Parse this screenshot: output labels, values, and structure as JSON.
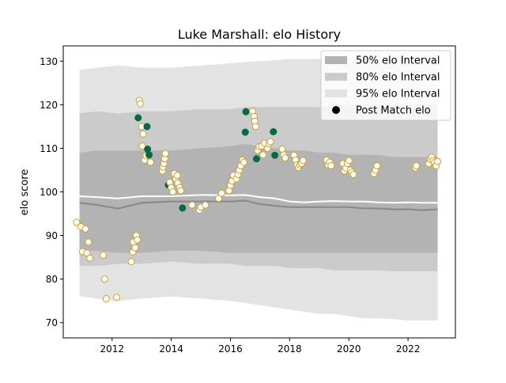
{
  "chart_data": {
    "type": "scatter",
    "title": "Luke Marshall: elo History",
    "xlabel": "",
    "ylabel": "elo score",
    "xlim": [
      2010.35,
      2023.6
    ],
    "ylim": [
      66.5,
      133.5
    ],
    "x_ticks": [
      {
        "value": 2012,
        "label": "2012"
      },
      {
        "value": 2014,
        "label": "2014"
      },
      {
        "value": 2016,
        "label": "2016"
      },
      {
        "value": 2018,
        "label": "2018"
      },
      {
        "value": 2020,
        "label": "2020"
      },
      {
        "value": 2022,
        "label": "2022"
      }
    ],
    "y_ticks": [
      {
        "value": 70,
        "label": "70"
      },
      {
        "value": 80,
        "label": "80"
      },
      {
        "value": 90,
        "label": "90"
      },
      {
        "value": 100,
        "label": "100"
      },
      {
        "value": 110,
        "label": "110"
      },
      {
        "value": 120,
        "label": "120"
      },
      {
        "value": 130,
        "label": "130"
      }
    ],
    "grid": false,
    "legend_position": "top-right",
    "legend": [
      {
        "label": "50% elo Interval",
        "kind": "patch",
        "color": "#b3b3b3"
      },
      {
        "label": "80% elo Interval",
        "kind": "patch",
        "color": "#cbcbcb"
      },
      {
        "label": "95% elo Interval",
        "kind": "patch",
        "color": "#e3e3e3"
      },
      {
        "label": "Post Match elo",
        "kind": "marker",
        "color": "#000000"
      }
    ],
    "colors": {
      "band95": "#e3e3e3",
      "band80": "#cbcbcb",
      "band50": "#b3b3b3",
      "median_line": "#888888",
      "mean_line": "#ffffff",
      "win_marker": "#006b45",
      "loss_marker_fill": "#ffffff",
      "loss_marker_edge": "#d4a021"
    },
    "bands": {
      "x": [
        2010.9,
        2011.5,
        2012.2,
        2013.0,
        2014.0,
        2015.0,
        2016.0,
        2016.5,
        2017.0,
        2017.5,
        2018.0,
        2018.5,
        2019.0,
        2019.5,
        2020.0,
        2020.5,
        2021.0,
        2021.5,
        2022.0,
        2022.5,
        2023.0
      ],
      "p95_lo": [
        76.0,
        75.5,
        75.0,
        75.5,
        76.0,
        75.5,
        75.0,
        74.5,
        74.0,
        73.5,
        73.0,
        72.5,
        72.0,
        72.0,
        71.5,
        71.0,
        71.0,
        70.8,
        70.5,
        70.5,
        70.5
      ],
      "p95_hi": [
        128.0,
        128.5,
        129.0,
        128.5,
        128.5,
        129.0,
        129.5,
        129.8,
        130.0,
        130.2,
        130.5,
        130.5,
        130.5,
        130.8,
        131.0,
        131.0,
        131.0,
        131.2,
        131.3,
        131.4,
        131.5
      ],
      "p80_lo": [
        83.0,
        83.0,
        83.5,
        83.5,
        84.0,
        83.5,
        83.5,
        83.0,
        83.0,
        83.0,
        82.5,
        82.5,
        82.5,
        82.0,
        82.0,
        82.0,
        82.0,
        81.8,
        81.8,
        81.8,
        81.8
      ],
      "p80_hi": [
        118.0,
        118.5,
        118.0,
        118.5,
        118.5,
        119.0,
        119.0,
        119.5,
        119.5,
        119.5,
        119.5,
        119.5,
        119.5,
        119.8,
        120.0,
        120.0,
        120.0,
        120.0,
        120.0,
        120.0,
        120.0
      ],
      "p50_lo": [
        86.5,
        86.5,
        86.0,
        86.0,
        86.5,
        86.5,
        86.0,
        86.0,
        86.0,
        86.0,
        86.0,
        86.0,
        86.0,
        86.0,
        86.0,
        86.0,
        86.0,
        86.0,
        86.0,
        86.0,
        86.0
      ],
      "p50_hi": [
        109.0,
        109.5,
        109.5,
        109.5,
        109.5,
        110.0,
        110.5,
        111.0,
        110.5,
        110.0,
        109.5,
        109.5,
        109.0,
        109.0,
        108.5,
        108.5,
        108.5,
        108.0,
        108.0,
        108.0,
        108.0
      ],
      "median": [
        97.5,
        97.0,
        96.2,
        97.5,
        97.8,
        97.8,
        97.8,
        98.0,
        97.2,
        96.8,
        96.5,
        96.5,
        96.5,
        96.5,
        96.5,
        96.2,
        96.2,
        96.0,
        96.0,
        95.8,
        96.0
      ],
      "mean": [
        99.0,
        98.8,
        98.5,
        99.0,
        99.0,
        99.3,
        99.2,
        99.3,
        98.8,
        98.5,
        97.8,
        97.6,
        97.8,
        97.9,
        97.8,
        97.8,
        97.6,
        97.5,
        97.6,
        97.5,
        97.5
      ]
    },
    "series": [
      {
        "name": "Post Match elo",
        "points": [
          {
            "x": 2010.8,
            "y": 93.0,
            "result": "loss"
          },
          {
            "x": 2010.95,
            "y": 92.0,
            "result": "loss"
          },
          {
            "x": 2011.0,
            "y": 86.3,
            "result": "loss"
          },
          {
            "x": 2011.1,
            "y": 91.5,
            "result": "loss"
          },
          {
            "x": 2011.15,
            "y": 86.0,
            "result": "loss"
          },
          {
            "x": 2011.2,
            "y": 88.5,
            "result": "loss"
          },
          {
            "x": 2011.25,
            "y": 84.8,
            "result": "loss"
          },
          {
            "x": 2011.7,
            "y": 85.5,
            "result": "loss"
          },
          {
            "x": 2011.75,
            "y": 80.0,
            "result": "loss"
          },
          {
            "x": 2011.8,
            "y": 75.5,
            "result": "loss"
          },
          {
            "x": 2012.15,
            "y": 75.8,
            "result": "loss"
          },
          {
            "x": 2012.65,
            "y": 84.0,
            "result": "loss"
          },
          {
            "x": 2012.7,
            "y": 86.2,
            "result": "loss"
          },
          {
            "x": 2012.72,
            "y": 88.5,
            "result": "loss"
          },
          {
            "x": 2012.78,
            "y": 87.2,
            "result": "loss"
          },
          {
            "x": 2012.82,
            "y": 90.0,
            "result": "loss"
          },
          {
            "x": 2012.85,
            "y": 89.0,
            "result": "loss"
          },
          {
            "x": 2012.88,
            "y": 117.0,
            "result": "win"
          },
          {
            "x": 2012.92,
            "y": 121.0,
            "result": "loss"
          },
          {
            "x": 2012.95,
            "y": 120.2,
            "result": "loss"
          },
          {
            "x": 2013.0,
            "y": 115.0,
            "result": "loss"
          },
          {
            "x": 2013.02,
            "y": 110.5,
            "result": "loss"
          },
          {
            "x": 2013.05,
            "y": 113.3,
            "result": "loss"
          },
          {
            "x": 2013.1,
            "y": 107.3,
            "result": "loss"
          },
          {
            "x": 2013.15,
            "y": 108.3,
            "result": "loss"
          },
          {
            "x": 2013.18,
            "y": 115.0,
            "result": "win"
          },
          {
            "x": 2013.2,
            "y": 109.8,
            "result": "win"
          },
          {
            "x": 2013.25,
            "y": 108.5,
            "result": "win"
          },
          {
            "x": 2013.3,
            "y": 106.8,
            "result": "loss"
          },
          {
            "x": 2013.7,
            "y": 104.8,
            "result": "loss"
          },
          {
            "x": 2013.72,
            "y": 105.7,
            "result": "loss"
          },
          {
            "x": 2013.75,
            "y": 106.5,
            "result": "loss"
          },
          {
            "x": 2013.78,
            "y": 107.6,
            "result": "loss"
          },
          {
            "x": 2013.8,
            "y": 108.8,
            "result": "loss"
          },
          {
            "x": 2013.9,
            "y": 101.6,
            "result": "win"
          },
          {
            "x": 2013.95,
            "y": 102.2,
            "result": "loss"
          },
          {
            "x": 2014.0,
            "y": 101.0,
            "result": "loss"
          },
          {
            "x": 2014.05,
            "y": 100.0,
            "result": "loss"
          },
          {
            "x": 2014.1,
            "y": 104.2,
            "result": "loss"
          },
          {
            "x": 2014.15,
            "y": 103.0,
            "result": "loss"
          },
          {
            "x": 2014.2,
            "y": 103.8,
            "result": "loss"
          },
          {
            "x": 2014.22,
            "y": 102.0,
            "result": "loss"
          },
          {
            "x": 2014.28,
            "y": 101.0,
            "result": "loss"
          },
          {
            "x": 2014.32,
            "y": 100.3,
            "result": "loss"
          },
          {
            "x": 2014.38,
            "y": 96.3,
            "result": "win"
          },
          {
            "x": 2014.7,
            "y": 97.0,
            "result": "loss"
          },
          {
            "x": 2014.95,
            "y": 95.8,
            "result": "loss"
          },
          {
            "x": 2015.0,
            "y": 96.5,
            "result": "loss"
          },
          {
            "x": 2015.15,
            "y": 97.0,
            "result": "loss"
          },
          {
            "x": 2015.6,
            "y": 98.5,
            "result": "loss"
          },
          {
            "x": 2015.7,
            "y": 99.7,
            "result": "loss"
          },
          {
            "x": 2015.95,
            "y": 100.3,
            "result": "loss"
          },
          {
            "x": 2016.0,
            "y": 101.5,
            "result": "loss"
          },
          {
            "x": 2016.05,
            "y": 102.5,
            "result": "loss"
          },
          {
            "x": 2016.1,
            "y": 103.8,
            "result": "loss"
          },
          {
            "x": 2016.2,
            "y": 103.0,
            "result": "loss"
          },
          {
            "x": 2016.25,
            "y": 104.0,
            "result": "loss"
          },
          {
            "x": 2016.3,
            "y": 105.0,
            "result": "loss"
          },
          {
            "x": 2016.35,
            "y": 106.0,
            "result": "loss"
          },
          {
            "x": 2016.4,
            "y": 107.3,
            "result": "loss"
          },
          {
            "x": 2016.45,
            "y": 106.8,
            "result": "loss"
          },
          {
            "x": 2016.5,
            "y": 113.7,
            "result": "win"
          },
          {
            "x": 2016.52,
            "y": 118.4,
            "result": "win"
          },
          {
            "x": 2016.75,
            "y": 118.5,
            "result": "loss"
          },
          {
            "x": 2016.8,
            "y": 117.3,
            "result": "loss"
          },
          {
            "x": 2016.82,
            "y": 116.2,
            "result": "loss"
          },
          {
            "x": 2016.85,
            "y": 115.0,
            "result": "loss"
          },
          {
            "x": 2016.88,
            "y": 107.6,
            "result": "win"
          },
          {
            "x": 2016.92,
            "y": 109.5,
            "result": "loss"
          },
          {
            "x": 2016.97,
            "y": 110.4,
            "result": "loss"
          },
          {
            "x": 2017.05,
            "y": 110.5,
            "result": "loss"
          },
          {
            "x": 2017.1,
            "y": 108.5,
            "result": "loss"
          },
          {
            "x": 2017.15,
            "y": 111.2,
            "result": "loss"
          },
          {
            "x": 2017.25,
            "y": 110.0,
            "result": "loss"
          },
          {
            "x": 2017.3,
            "y": 111.0,
            "result": "loss"
          },
          {
            "x": 2017.35,
            "y": 111.5,
            "result": "loss"
          },
          {
            "x": 2017.45,
            "y": 113.8,
            "result": "win"
          },
          {
            "x": 2017.5,
            "y": 108.4,
            "result": "win"
          },
          {
            "x": 2017.75,
            "y": 109.8,
            "result": "loss"
          },
          {
            "x": 2017.8,
            "y": 108.5,
            "result": "loss"
          },
          {
            "x": 2017.85,
            "y": 107.8,
            "result": "loss"
          },
          {
            "x": 2018.15,
            "y": 108.4,
            "result": "loss"
          },
          {
            "x": 2018.2,
            "y": 107.3,
            "result": "loss"
          },
          {
            "x": 2018.25,
            "y": 106.2,
            "result": "loss"
          },
          {
            "x": 2018.3,
            "y": 105.6,
            "result": "loss"
          },
          {
            "x": 2018.35,
            "y": 106.2,
            "result": "loss"
          },
          {
            "x": 2018.4,
            "y": 106.5,
            "result": "loss"
          },
          {
            "x": 2018.45,
            "y": 107.2,
            "result": "loss"
          },
          {
            "x": 2019.25,
            "y": 107.3,
            "result": "loss"
          },
          {
            "x": 2019.3,
            "y": 106.2,
            "result": "loss"
          },
          {
            "x": 2019.35,
            "y": 106.8,
            "result": "loss"
          },
          {
            "x": 2019.4,
            "y": 106.0,
            "result": "loss"
          },
          {
            "x": 2019.8,
            "y": 106.5,
            "result": "loss"
          },
          {
            "x": 2019.85,
            "y": 104.8,
            "result": "loss"
          },
          {
            "x": 2019.9,
            "y": 105.5,
            "result": "loss"
          },
          {
            "x": 2019.95,
            "y": 106.5,
            "result": "loss"
          },
          {
            "x": 2020.0,
            "y": 107.2,
            "result": "loss"
          },
          {
            "x": 2020.05,
            "y": 105.0,
            "result": "loss"
          },
          {
            "x": 2020.1,
            "y": 104.5,
            "result": "loss"
          },
          {
            "x": 2020.15,
            "y": 104.0,
            "result": "loss"
          },
          {
            "x": 2020.85,
            "y": 104.2,
            "result": "loss"
          },
          {
            "x": 2020.9,
            "y": 105.0,
            "result": "loss"
          },
          {
            "x": 2020.95,
            "y": 106.0,
            "result": "loss"
          },
          {
            "x": 2022.25,
            "y": 105.5,
            "result": "loss"
          },
          {
            "x": 2022.28,
            "y": 106.0,
            "result": "loss"
          },
          {
            "x": 2022.7,
            "y": 106.5,
            "result": "loss"
          },
          {
            "x": 2022.75,
            "y": 107.5,
            "result": "loss"
          },
          {
            "x": 2022.8,
            "y": 108.0,
            "result": "loss"
          },
          {
            "x": 2022.85,
            "y": 107.2,
            "result": "loss"
          },
          {
            "x": 2022.9,
            "y": 106.8,
            "result": "loss"
          },
          {
            "x": 2022.95,
            "y": 106.0,
            "result": "loss"
          },
          {
            "x": 2023.0,
            "y": 107.0,
            "result": "loss"
          }
        ]
      }
    ]
  }
}
